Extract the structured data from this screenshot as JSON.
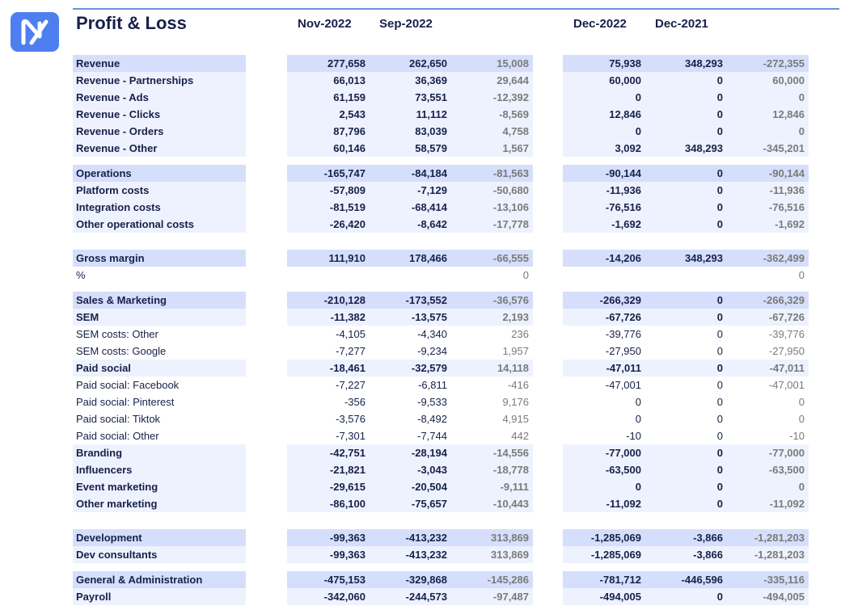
{
  "header": {
    "title": "Profit & Loss",
    "columns": [
      "Nov-2022",
      "Sep-2022",
      null,
      "Dec-2022",
      "Dec-2021",
      null
    ]
  },
  "table": {
    "groups": [
      {
        "rows": [
          {
            "label": "Revenue",
            "style": "section",
            "values": [
              "277,658",
              "262,650",
              "15,008",
              "75,938",
              "348,293",
              "-272,355"
            ]
          },
          {
            "label": "Revenue - Partnerships",
            "style": "sub",
            "values": [
              "66,013",
              "36,369",
              "29,644",
              "60,000",
              "0",
              "60,000"
            ]
          },
          {
            "label": "Revenue - Ads",
            "style": "sub",
            "values": [
              "61,159",
              "73,551",
              "-12,392",
              "0",
              "0",
              "0"
            ]
          },
          {
            "label": "Revenue - Clicks",
            "style": "sub",
            "values": [
              "2,543",
              "11,112",
              "-8,569",
              "12,846",
              "0",
              "12,846"
            ]
          },
          {
            "label": "Revenue - Orders",
            "style": "sub",
            "values": [
              "87,796",
              "83,039",
              "4,758",
              "0",
              "0",
              "0"
            ]
          },
          {
            "label": "Revenue - Other",
            "style": "sub",
            "values": [
              "60,146",
              "58,579",
              "1,567",
              "3,092",
              "348,293",
              "-345,201"
            ]
          }
        ]
      },
      {
        "rows": [
          {
            "label": "Operations",
            "style": "section",
            "values": [
              "-165,747",
              "-84,184",
              "-81,563",
              "-90,144",
              "0",
              "-90,144"
            ]
          },
          {
            "label": "Platform costs",
            "style": "sub",
            "values": [
              "-57,809",
              "-7,129",
              "-50,680",
              "-11,936",
              "0",
              "-11,936"
            ]
          },
          {
            "label": "Integration costs",
            "style": "sub",
            "values": [
              "-81,519",
              "-68,414",
              "-13,106",
              "-76,516",
              "0",
              "-76,516"
            ]
          },
          {
            "label": "Other operational costs",
            "style": "sub",
            "values": [
              "-26,420",
              "-8,642",
              "-17,778",
              "-1,692",
              "0",
              "-1,692"
            ]
          }
        ]
      },
      {
        "rows": [
          {
            "label": "Gross margin",
            "style": "section",
            "values": [
              "111,910",
              "178,466",
              "-66,555",
              "-14,206",
              "348,293",
              "-362,499"
            ]
          },
          {
            "label": "%",
            "style": "detail",
            "values": [
              null,
              null,
              "0",
              null,
              null,
              "0"
            ]
          }
        ]
      },
      {
        "rows": [
          {
            "label": "Sales & Marketing",
            "style": "section",
            "values": [
              "-210,128",
              "-173,552",
              "-36,576",
              "-266,329",
              "0",
              "-266,329"
            ]
          },
          {
            "label": "SEM",
            "style": "sub",
            "values": [
              "-11,382",
              "-13,575",
              "2,193",
              "-67,726",
              "0",
              "-67,726"
            ]
          },
          {
            "label": "SEM costs: Other",
            "style": "detail",
            "values": [
              "-4,105",
              "-4,340",
              "236",
              "-39,776",
              "0",
              "-39,776"
            ]
          },
          {
            "label": "SEM costs: Google",
            "style": "detail",
            "values": [
              "-7,277",
              "-9,234",
              "1,957",
              "-27,950",
              "0",
              "-27,950"
            ]
          },
          {
            "label": "Paid social",
            "style": "sub",
            "values": [
              "-18,461",
              "-32,579",
              "14,118",
              "-47,011",
              "0",
              "-47,011"
            ]
          },
          {
            "label": "Paid social: Facebook",
            "style": "detail",
            "values": [
              "-7,227",
              "-6,811",
              "-416",
              "-47,001",
              "0",
              "-47,001"
            ]
          },
          {
            "label": "Paid social: Pinterest",
            "style": "detail",
            "values": [
              "-356",
              "-9,533",
              "9,176",
              "0",
              "0",
              "0"
            ]
          },
          {
            "label": "Paid social: Tiktok",
            "style": "detail",
            "values": [
              "-3,576",
              "-8,492",
              "4,915",
              "0",
              "0",
              "0"
            ]
          },
          {
            "label": "Paid social: Other",
            "style": "detail",
            "values": [
              "-7,301",
              "-7,744",
              "442",
              "-10",
              "0",
              "-10"
            ]
          },
          {
            "label": "Branding",
            "style": "sub",
            "values": [
              "-42,751",
              "-28,194",
              "-14,556",
              "-77,000",
              "0",
              "-77,000"
            ]
          },
          {
            "label": "Influencers",
            "style": "sub",
            "values": [
              "-21,821",
              "-3,043",
              "-18,778",
              "-63,500",
              "0",
              "-63,500"
            ]
          },
          {
            "label": "Event marketing",
            "style": "sub",
            "values": [
              "-29,615",
              "-20,504",
              "-9,111",
              "0",
              "0",
              "0"
            ]
          },
          {
            "label": "Other marketing",
            "style": "sub",
            "values": [
              "-86,100",
              "-75,657",
              "-10,443",
              "-11,092",
              "0",
              "-11,092"
            ]
          }
        ]
      },
      {
        "rows": [
          {
            "label": "Development",
            "style": "section",
            "values": [
              "-99,363",
              "-413,232",
              "313,869",
              "-1,285,069",
              "-3,866",
              "-1,281,203"
            ]
          },
          {
            "label": "Dev consultants",
            "style": "sub",
            "values": [
              "-99,363",
              "-413,232",
              "313,869",
              "-1,285,069",
              "-3,866",
              "-1,281,203"
            ]
          }
        ]
      },
      {
        "rows": [
          {
            "label": "General & Administration",
            "style": "section",
            "values": [
              "-475,153",
              "-329,868",
              "-145,286",
              "-781,712",
              "-446,596",
              "-335,116"
            ]
          },
          {
            "label": "Payroll",
            "style": "sub",
            "values": [
              "-342,060",
              "-244,573",
              "-97,487",
              "-494,005",
              "0",
              "-494,005"
            ]
          }
        ]
      }
    ]
  }
}
